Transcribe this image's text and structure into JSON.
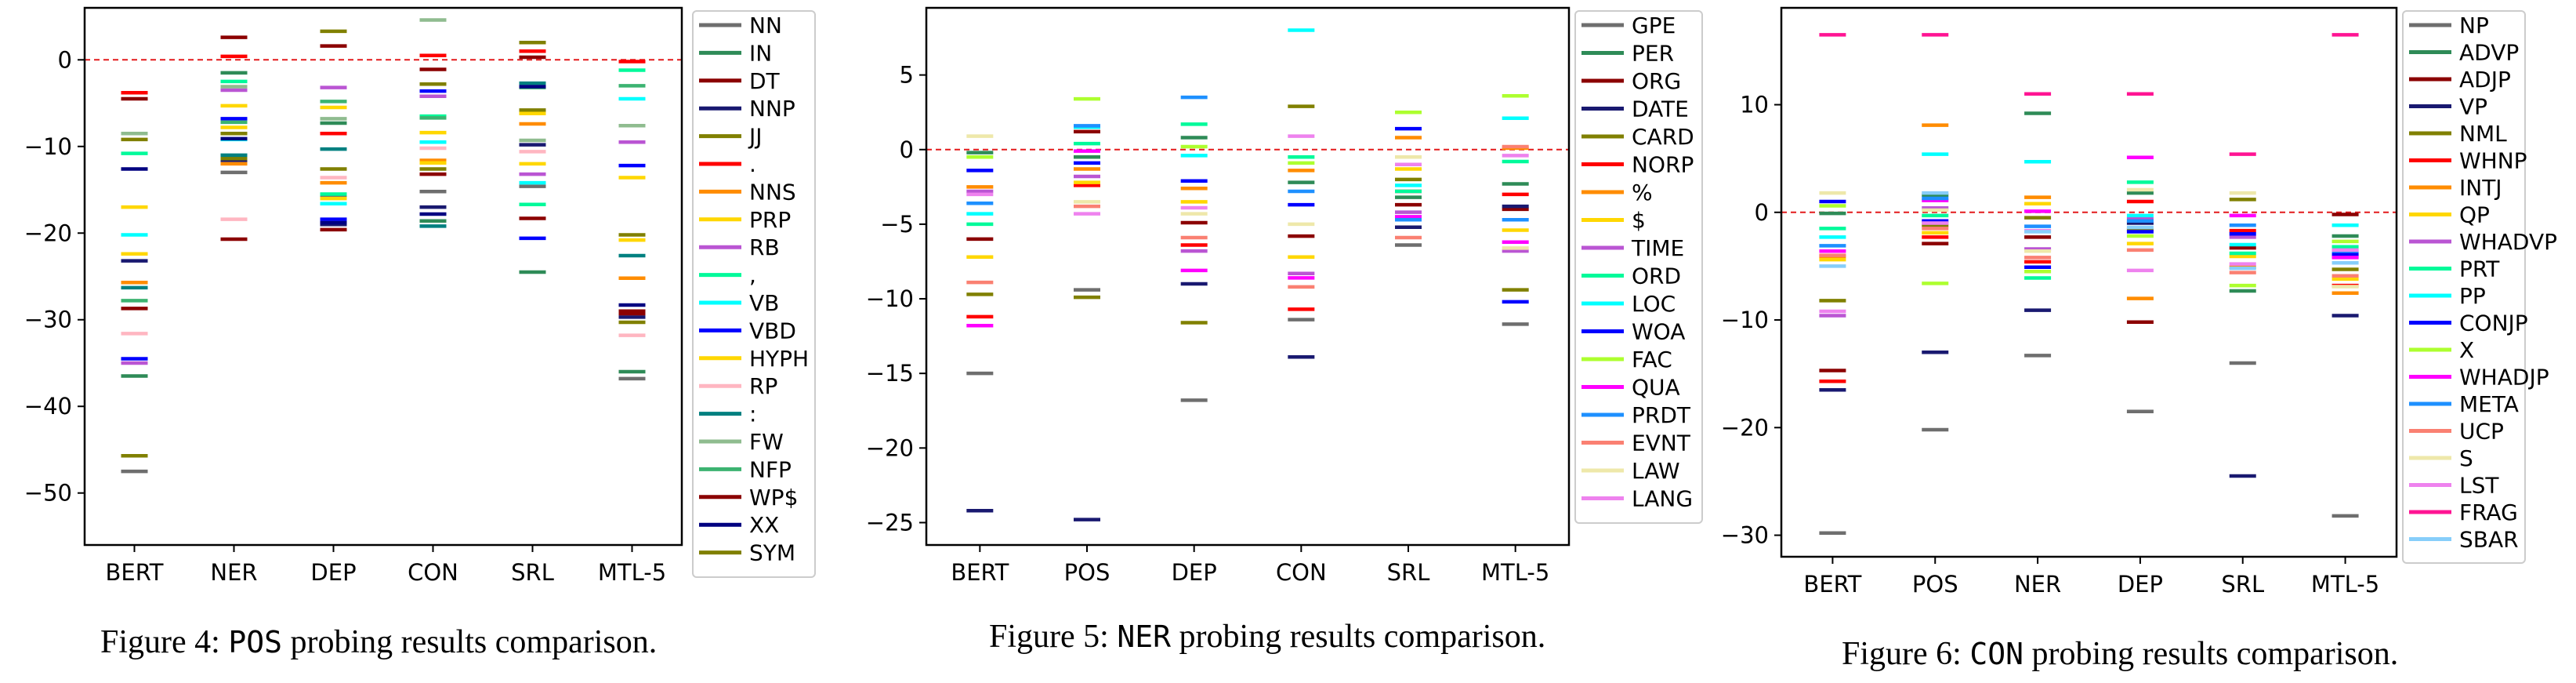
{
  "captions": [
    {
      "prefix": "Figure 4: ",
      "code": "POS",
      "suffix": " probing results comparison."
    },
    {
      "prefix": "Figure 5: ",
      "code": "NER",
      "suffix": " probing results comparison."
    },
    {
      "prefix": "Figure 6: ",
      "code": "CON",
      "suffix": " probing results comparison."
    }
  ],
  "chart_data": [
    {
      "type": "scatter",
      "marker": "horizontal-dash",
      "categories": [
        "BERT",
        "NER",
        "DEP",
        "CON",
        "SRL",
        "MTL-5"
      ],
      "ylim": [
        -56,
        6
      ],
      "yticks": [
        0,
        -10,
        -20,
        -30,
        -40,
        -50
      ],
      "reference_line": {
        "y": 0,
        "color": "#e31a1c",
        "style": "dashed"
      },
      "legend_position": "right",
      "series": [
        {
          "name": "NN",
          "color": "#6e6e6e",
          "values": [
            -47.5,
            -13,
            -15.8,
            -15.2,
            -14.6,
            -36.8
          ]
        },
        {
          "name": "IN",
          "color": "#2e8b57",
          "values": [
            -36.5,
            -1.5,
            -7.3,
            -18.6,
            -24.5,
            -36
          ]
        },
        {
          "name": "DT",
          "color": "#8b0000",
          "values": [
            -28.7,
            -20.7,
            -19.6,
            -13.2,
            -18.3,
            -29
          ]
        },
        {
          "name": "NNP",
          "color": "#191970",
          "values": [
            -23.2,
            -11.6,
            -19,
            -17,
            -9.8,
            -29.7
          ]
        },
        {
          "name": "JJ",
          "color": "#808000",
          "values": [
            -45.7,
            -11.4,
            -12.6,
            -12.6,
            -5.8,
            -20.2
          ]
        },
        {
          "name": ".",
          "color": "#ff0000",
          "values": [
            -3.8,
            0.4,
            -8.5,
            0.5,
            1,
            -0.2
          ]
        },
        {
          "name": "NNS",
          "color": "#ff8c00",
          "values": [
            -25.7,
            -12,
            -14.2,
            -11.6,
            -7.4,
            -25.2
          ]
        },
        {
          "name": "PRP",
          "color": "#ffd700",
          "values": [
            -22.4,
            -7.8,
            -16,
            -8.4,
            -12,
            -13.6
          ]
        },
        {
          "name": "RB",
          "color": "#ba55d3",
          "values": [
            -35,
            -3.5,
            -3.2,
            -4.2,
            -13.2,
            -9.5
          ]
        },
        {
          "name": ",",
          "color": "#00fa9a",
          "values": [
            -10.8,
            -2.5,
            -15.5,
            -6.5,
            -16.7,
            -1.2
          ]
        },
        {
          "name": "VB",
          "color": "#00ffff",
          "values": [
            -20.2,
            -9.2,
            -16.6,
            -9.5,
            -14.2,
            -4.5
          ]
        },
        {
          "name": "VBD",
          "color": "#0000ff",
          "values": [
            -34.5,
            -6.8,
            -18.4,
            -3.6,
            -20.6,
            -12.2
          ]
        },
        {
          "name": "HYPH",
          "color": "#ffd700",
          "values": [
            -17,
            -5.3,
            -5.5,
            -11.9,
            -6.2,
            -20.8
          ]
        },
        {
          "name": "RP",
          "color": "#ffb6c1",
          "values": [
            -31.6,
            -18.4,
            -13.6,
            -10.2,
            -10.6,
            -31.8
          ]
        },
        {
          "name": ":",
          "color": "#008080",
          "values": [
            -26.3,
            -11,
            -10.3,
            -19.2,
            -2.7,
            -22.6
          ]
        },
        {
          "name": "FW",
          "color": "#8fbc8f",
          "values": [
            -8.5,
            -3.1,
            -6.8,
            4.6,
            -9.3,
            -7.6
          ]
        },
        {
          "name": "NFP",
          "color": "#3cb371",
          "values": [
            -27.8,
            -7.2,
            -4.8,
            -6.7,
            -3.2,
            -3
          ]
        },
        {
          "name": "WP$",
          "color": "#8b0000",
          "values": [
            -4.5,
            2.6,
            1.6,
            -1.1,
            0.3,
            -29.3
          ]
        },
        {
          "name": "XX",
          "color": "#000080",
          "values": [
            -12.6,
            -9.1,
            -18.8,
            -17.8,
            -3.1,
            -28.3
          ]
        },
        {
          "name": "SYM",
          "color": "#808000",
          "values": [
            -9.2,
            -8.5,
            3.3,
            -2.8,
            2,
            -30.3
          ]
        }
      ]
    },
    {
      "type": "scatter",
      "marker": "horizontal-dash",
      "categories": [
        "BERT",
        "POS",
        "DEP",
        "CON",
        "SRL",
        "MTL-5"
      ],
      "ylim": [
        -26.5,
        9.5
      ],
      "yticks": [
        5,
        0,
        -5,
        -10,
        -15,
        -20,
        -25
      ],
      "reference_line": {
        "y": 0,
        "color": "#e31a1c",
        "style": "dashed"
      },
      "legend_position": "right",
      "series": [
        {
          "name": "GPE",
          "color": "#6e6e6e",
          "values": [
            -15,
            -9.4,
            -16.8,
            -11.4,
            -6.4,
            -11.7
          ]
        },
        {
          "name": "PER",
          "color": "#2e8b57",
          "values": [
            -0.2,
            -0.5,
            0.8,
            -2.2,
            -3.2,
            -2.3
          ]
        },
        {
          "name": "ORG",
          "color": "#8b0000",
          "values": [
            -6,
            1.2,
            -4.9,
            -5.8,
            -3.7,
            -4
          ]
        },
        {
          "name": "DATE",
          "color": "#191970",
          "values": [
            -24.2,
            -24.8,
            -9,
            -13.9,
            -5.2,
            -3.8
          ]
        },
        {
          "name": "CARD",
          "color": "#808000",
          "values": [
            -9.7,
            -9.9,
            -11.6,
            2.9,
            -2,
            -9.4
          ]
        },
        {
          "name": "NORP",
          "color": "#ff0000",
          "values": [
            -11.2,
            -2.4,
            -6.4,
            -10.7,
            -2.8,
            -3
          ]
        },
        {
          "name": "%",
          "color": "#ff8c00",
          "values": [
            -2.5,
            -1.3,
            -2.6,
            -1.4,
            0.8,
            0.1
          ]
        },
        {
          "name": "$",
          "color": "#ffd700",
          "values": [
            -7.2,
            -2.2,
            -3.5,
            -7.2,
            -1.3,
            -5.4
          ]
        },
        {
          "name": "TIME",
          "color": "#ba55d3",
          "values": [
            -2.8,
            -1.8,
            -6.8,
            -8.3,
            -4.2,
            -6.8
          ]
        },
        {
          "name": "ORD",
          "color": "#00fa9a",
          "values": [
            -5,
            0.4,
            1.7,
            -0.5,
            -2.8,
            -0.8
          ]
        },
        {
          "name": "LOC",
          "color": "#00ffff",
          "values": [
            -4.3,
            1.5,
            -0.4,
            8,
            -2.4,
            2.1
          ]
        },
        {
          "name": "WOA",
          "color": "#0000ff",
          "values": [
            -1.4,
            -0.9,
            -2.1,
            -3.7,
            1.4,
            -10.2
          ]
        },
        {
          "name": "FAC",
          "color": "#adff2f",
          "values": [
            -0.5,
            3.4,
            0.2,
            -0.9,
            2.5,
            3.6
          ]
        },
        {
          "name": "QUA",
          "color": "#ff00ff",
          "values": [
            -11.8,
            -0.1,
            -8.1,
            -8.6,
            -4.5,
            -6.2
          ]
        },
        {
          "name": "PRDT",
          "color": "#1e90ff",
          "values": [
            -3.6,
            1.6,
            3.5,
            -2.8,
            -4.7,
            -4.7
          ]
        },
        {
          "name": "EVNT",
          "color": "#fa8072",
          "values": [
            -8.9,
            -3.8,
            -5.9,
            -9.2,
            -5.9,
            0.2
          ]
        },
        {
          "name": "LAW",
          "color": "#eee8aa",
          "values": [
            0.9,
            -3.5,
            -4.3,
            -5,
            -0.5,
            -6.6
          ]
        },
        {
          "name": "LANG",
          "color": "#ee82ee",
          "values": [
            -3,
            -4.3,
            -3.9,
            0.9,
            -1,
            -0.4
          ]
        }
      ]
    },
    {
      "type": "scatter",
      "marker": "horizontal-dash",
      "categories": [
        "BERT",
        "POS",
        "NER",
        "DEP",
        "SRL",
        "MTL-5"
      ],
      "ylim": [
        -32,
        19
      ],
      "yticks": [
        10,
        0,
        -10,
        -20,
        -30
      ],
      "reference_line": {
        "y": 0,
        "color": "#e31a1c",
        "style": "dashed"
      },
      "legend_position": "right",
      "series": [
        {
          "name": "NP",
          "color": "#6e6e6e",
          "values": [
            -29.8,
            -20.2,
            -13.3,
            -18.5,
            -14,
            -28.2
          ]
        },
        {
          "name": "ADVP",
          "color": "#2e8b57",
          "values": [
            -0.1,
            1.6,
            9.2,
            1.8,
            -7.3,
            -2.2
          ]
        },
        {
          "name": "ADJP",
          "color": "#8b0000",
          "values": [
            -14.7,
            -2.9,
            -2.3,
            -10.2,
            -3.3,
            -0.2
          ]
        },
        {
          "name": "VP",
          "color": "#191970",
          "values": [
            -16.5,
            -13,
            -9.1,
            -1,
            -24.5,
            -9.6
          ]
        },
        {
          "name": "NML",
          "color": "#808000",
          "values": [
            -8.2,
            -1.2,
            -0.5,
            -1.6,
            1.2,
            -5.3
          ]
        },
        {
          "name": "WHNP",
          "color": "#ff0000",
          "values": [
            -15.7,
            -2.3,
            -4.6,
            1,
            -1.7,
            -6.8
          ]
        },
        {
          "name": "INTJ",
          "color": "#ff8c00",
          "values": [
            -4.1,
            8.1,
            1.4,
            -8,
            -5.1,
            -7.5
          ]
        },
        {
          "name": "QP",
          "color": "#ffd700",
          "values": [
            -4.4,
            -1.9,
            0.8,
            -2.9,
            -4.1,
            -6.2
          ]
        },
        {
          "name": "WHADVP",
          "color": "#ba55d3",
          "values": [
            -9.6,
            0.4,
            -3.4,
            -0.6,
            -2.3,
            -4.1
          ]
        },
        {
          "name": "PRT",
          "color": "#00fa9a",
          "values": [
            -1.5,
            -0.3,
            -6.1,
            2.8,
            -3.8,
            -3.2
          ]
        },
        {
          "name": "PP",
          "color": "#00ffff",
          "values": [
            -2.3,
            5.4,
            4.7,
            -0.3,
            -3,
            -1.2
          ]
        },
        {
          "name": "CONJP",
          "color": "#0000ff",
          "values": [
            1,
            -0.8,
            -5.1,
            -1.8,
            -2,
            -3.9
          ]
        },
        {
          "name": "X",
          "color": "#adff2f",
          "values": [
            0.6,
            -6.6,
            -5.5,
            -2.2,
            -6.8,
            -2.7
          ]
        },
        {
          "name": "WHADJP",
          "color": "#ff00ff",
          "values": [
            -3.6,
            1.1,
            0.1,
            5.1,
            -0.3,
            -4.2
          ]
        },
        {
          "name": "META",
          "color": "#1e90ff",
          "values": [
            -3.1,
            1.3,
            -1.3,
            -0.8,
            -1.2,
            -3.6
          ]
        },
        {
          "name": "UCP",
          "color": "#fa8072",
          "values": [
            -4,
            -1.5,
            -4.2,
            -3.5,
            -5.6,
            -5.9
          ]
        },
        {
          "name": "S",
          "color": "#eee8aa",
          "values": [
            1.8,
            0.2,
            -3.6,
            2.1,
            1.8,
            -6.9
          ]
        },
        {
          "name": "LST",
          "color": "#ee82ee",
          "values": [
            -9.2,
            -1,
            -1.7,
            -5.4,
            -4.8,
            -3.5
          ]
        },
        {
          "name": "FRAG",
          "color": "#ff1493",
          "values": [
            16.5,
            16.5,
            11,
            11,
            5.4,
            16.5
          ]
        },
        {
          "name": "SBAR",
          "color": "#87cefa",
          "values": [
            -5,
            1.8,
            -1.8,
            -1.4,
            -5.2,
            -4.7
          ]
        }
      ]
    }
  ]
}
